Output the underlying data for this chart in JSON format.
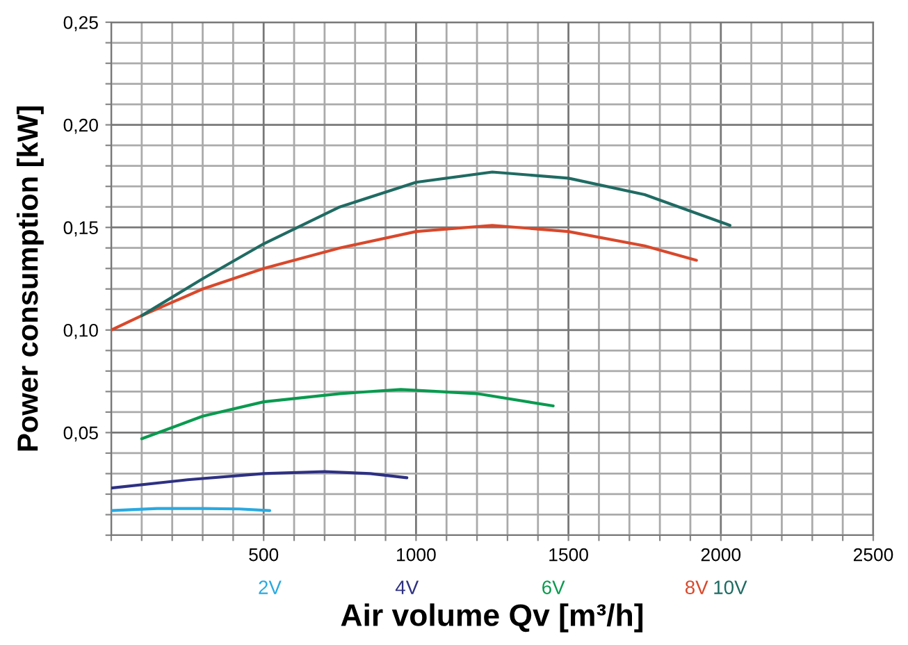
{
  "chart_data": {
    "type": "line",
    "xlabel": "Air volume Qv [m³/h]",
    "ylabel": "Power consumption [kW]",
    "xlim": [
      0,
      2500
    ],
    "ylim": [
      0,
      0.25
    ],
    "xticks": [
      {
        "value": 0,
        "label": null
      },
      {
        "value": 100,
        "label": null
      },
      {
        "value": 200,
        "label": null
      },
      {
        "value": 300,
        "label": null
      },
      {
        "value": 400,
        "label": null
      },
      500,
      {
        "value": 600,
        "label": null
      },
      {
        "value": 700,
        "label": null
      },
      {
        "value": 800,
        "label": null
      },
      {
        "value": 900,
        "label": null
      },
      1000,
      {
        "value": 1100,
        "label": null
      },
      {
        "value": 1200,
        "label": null
      },
      {
        "value": 1300,
        "label": null
      },
      {
        "value": 1400,
        "label": null
      },
      1500,
      {
        "value": 1600,
        "label": null
      },
      {
        "value": 1700,
        "label": null
      },
      {
        "value": 1800,
        "label": null
      },
      {
        "value": 1900,
        "label": null
      },
      2000,
      {
        "value": 2100,
        "label": null
      },
      {
        "value": 2200,
        "label": null
      },
      {
        "value": 2300,
        "label": null
      },
      {
        "value": 2400,
        "label": null
      },
      2500
    ],
    "yticks": [
      {
        "value": 0,
        "label": null
      },
      {
        "value": 0.01,
        "label": null
      },
      {
        "value": 0.02,
        "label": null
      },
      {
        "value": 0.03,
        "label": null
      },
      {
        "value": 0.04,
        "label": null
      },
      {
        "value": 0.05,
        "label": "0,05"
      },
      {
        "value": 0.06,
        "label": null
      },
      {
        "value": 0.07,
        "label": null
      },
      {
        "value": 0.08,
        "label": null
      },
      {
        "value": 0.09,
        "label": null
      },
      {
        "value": 0.1,
        "label": "0,10"
      },
      {
        "value": 0.11,
        "label": null
      },
      {
        "value": 0.12,
        "label": null
      },
      {
        "value": 0.13,
        "label": null
      },
      {
        "value": 0.14,
        "label": null
      },
      {
        "value": 0.15,
        "label": "0,15"
      },
      {
        "value": 0.16,
        "label": null
      },
      {
        "value": 0.17,
        "label": null
      },
      {
        "value": 0.18,
        "label": null
      },
      {
        "value": 0.19,
        "label": null
      },
      {
        "value": 0.2,
        "label": "0,20"
      },
      {
        "value": 0.21,
        "label": null
      },
      {
        "value": 0.22,
        "label": null
      },
      {
        "value": 0.23,
        "label": null
      },
      {
        "value": 0.24,
        "label": null
      },
      {
        "value": 0.25,
        "label": "0,25"
      }
    ],
    "grid": true,
    "legend": false,
    "marker": "none",
    "line_style": "solid",
    "series": [
      {
        "name": "2V",
        "color": "#29a9e0",
        "x": [
          0,
          150,
          300,
          420,
          520
        ],
        "values": [
          0.012,
          0.013,
          0.013,
          0.0128,
          0.012
        ]
      },
      {
        "name": "4V",
        "color": "#2e3182",
        "x": [
          0,
          250,
          500,
          700,
          850,
          970
        ],
        "values": [
          0.023,
          0.027,
          0.03,
          0.031,
          0.03,
          0.028
        ]
      },
      {
        "name": "6V",
        "color": "#0a9a4f",
        "x": [
          100,
          300,
          500,
          750,
          950,
          1200,
          1450
        ],
        "values": [
          0.047,
          0.058,
          0.065,
          0.069,
          0.071,
          0.069,
          0.063
        ]
      },
      {
        "name": "8V",
        "color": "#d9482b",
        "x": [
          0,
          100,
          300,
          500,
          750,
          1000,
          1250,
          1500,
          1750,
          1920
        ],
        "values": [
          0.1,
          0.107,
          0.12,
          0.13,
          0.14,
          0.148,
          0.151,
          0.148,
          0.141,
          0.134
        ]
      },
      {
        "name": "10V",
        "color": "#1f6b63",
        "x": [
          100,
          300,
          500,
          750,
          1000,
          1250,
          1500,
          1750,
          2030
        ],
        "values": [
          0.107,
          0.125,
          0.142,
          0.16,
          0.172,
          0.177,
          0.174,
          0.166,
          0.151
        ]
      }
    ]
  }
}
